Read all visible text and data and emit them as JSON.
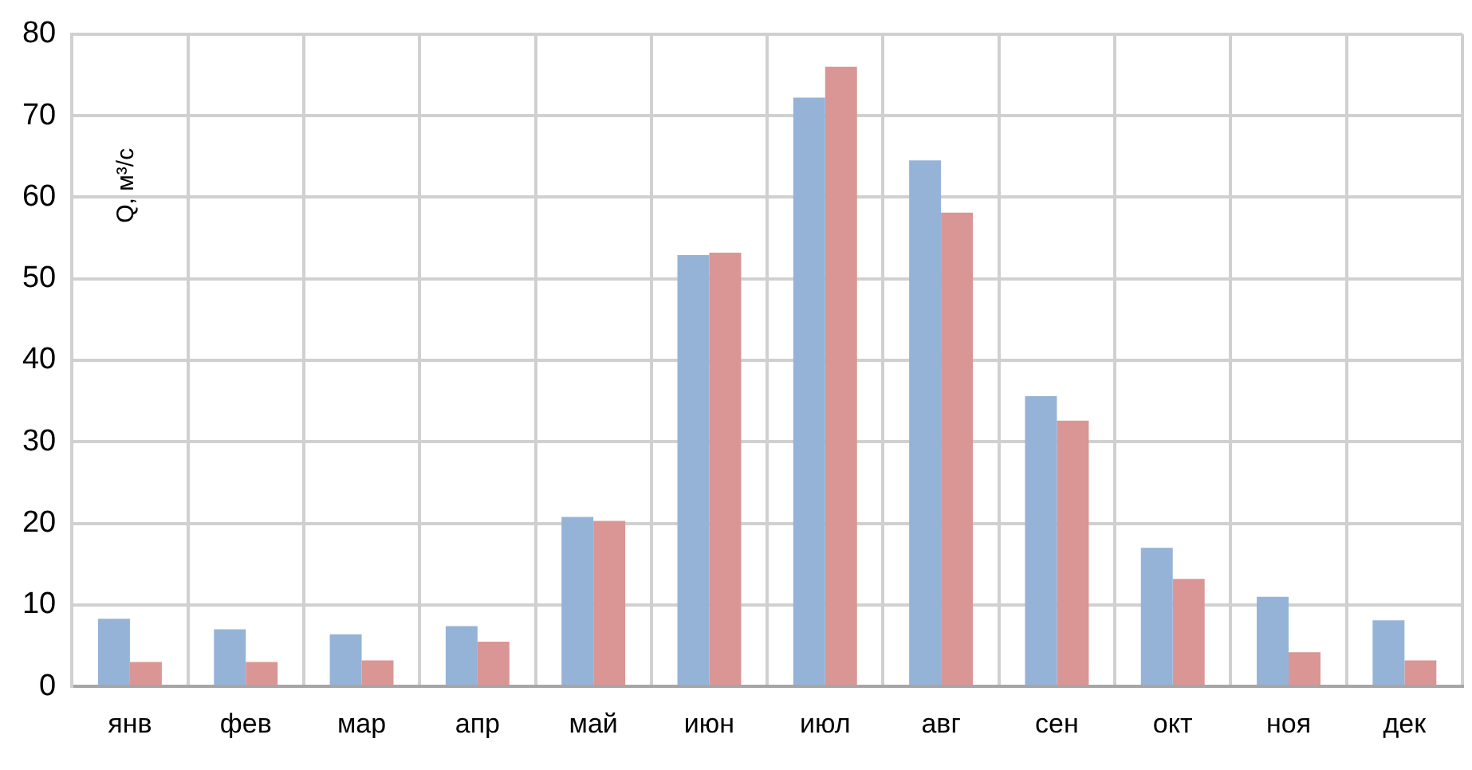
{
  "chart_data": {
    "type": "bar",
    "ylabel": "Q, м³/с",
    "categories": [
      "янв",
      "фев",
      "мар",
      "апр",
      "май",
      "июн",
      "июл",
      "авг",
      "сен",
      "окт",
      "ноя",
      "дек"
    ],
    "series": [
      {
        "color": "#95b3d7",
        "values": [
          8.3,
          7.0,
          6.4,
          7.4,
          20.8,
          52.9,
          72.2,
          64.5,
          35.6,
          17.0,
          11.0,
          8.1
        ]
      },
      {
        "color": "#d99694",
        "values": [
          3.0,
          3.0,
          3.2,
          5.5,
          20.3,
          53.2,
          76.0,
          58.1,
          32.6,
          13.2,
          4.2,
          3.2
        ]
      }
    ],
    "ylim": [
      0,
      80
    ],
    "yticks": [
      0,
      10,
      20,
      30,
      40,
      50,
      60,
      70,
      80
    ],
    "grid": true,
    "legend": false
  }
}
